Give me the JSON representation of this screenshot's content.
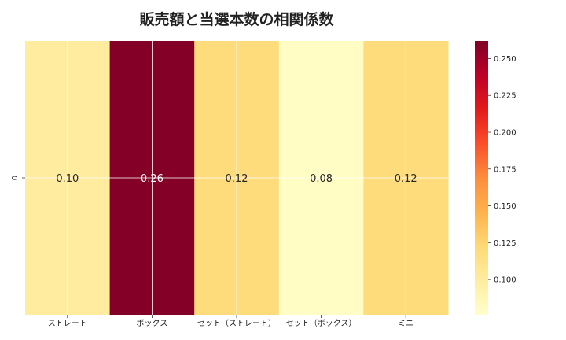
{
  "chart_data": {
    "type": "heatmap",
    "title": "販売額と当選本数の相関係数",
    "xlabel": "",
    "ylabel": "",
    "x_categories": [
      "ストレート",
      "ボックス",
      "セット（ストレート）",
      "セット（ボックス）",
      "ミニ"
    ],
    "y_categories": [
      "0"
    ],
    "values": [
      [
        0.1,
        0.26,
        0.12,
        0.08,
        0.12
      ]
    ],
    "annotations": [
      "0.10",
      "0.26",
      "0.12",
      "0.08",
      "0.12"
    ],
    "colorbar": {
      "min": 0.076,
      "max": 0.262,
      "ticks": [
        "0.100",
        "0.125",
        "0.150",
        "0.175",
        "0.200",
        "0.225",
        "0.250"
      ],
      "colormap": "YlOrRd"
    },
    "grid": true
  }
}
